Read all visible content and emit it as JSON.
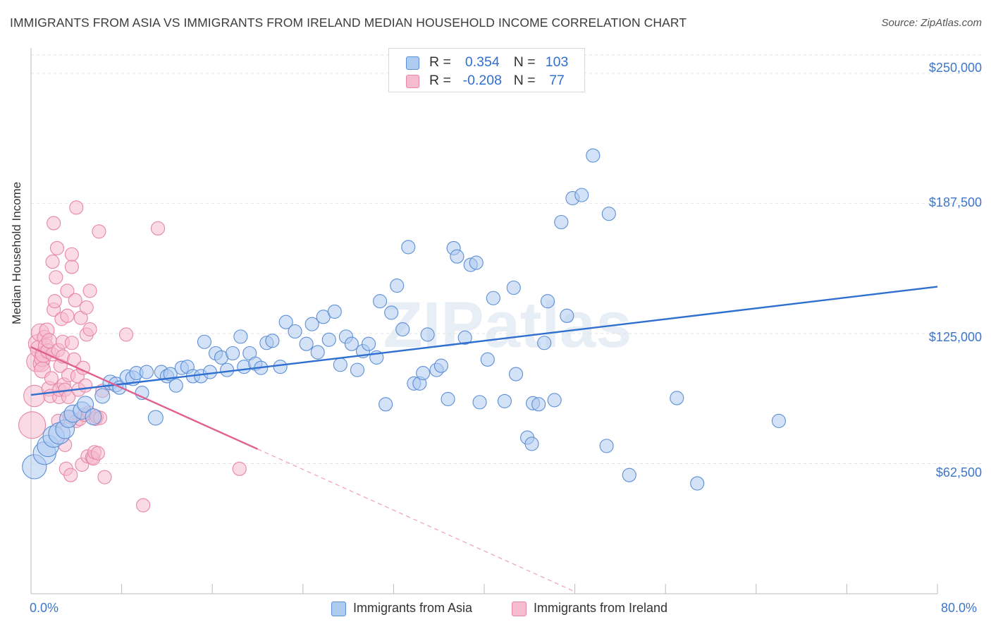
{
  "title": "IMMIGRANTS FROM ASIA VS IMMIGRANTS FROM IRELAND MEDIAN HOUSEHOLD INCOME CORRELATION CHART",
  "source": "Source: ZipAtlas.com",
  "watermark": "ZIPatlas",
  "legend": {
    "asia": {
      "r_label": "R =",
      "r_value": "0.354",
      "n_label": "N =",
      "n_value": "103"
    },
    "ireland": {
      "r_label": "R =",
      "r_value": "-0.208",
      "n_label": "N =",
      "n_value": "77"
    }
  },
  "bottom_legend": {
    "asia": "Immigrants from Asia",
    "ireland": "Immigrants from Ireland"
  },
  "colors": {
    "asia_fill": "#aecbf0",
    "asia_stroke": "#5b8fd6",
    "asia_line": "#2f6fd0",
    "ireland_fill": "#f5bcd0",
    "ireland_stroke": "#e886a6",
    "ireland_line": "#e0608e",
    "grid": "#e3e3e3",
    "tick_label": "#3d76c8"
  },
  "chart_data": {
    "type": "scatter",
    "title": "IMMIGRANTS FROM ASIA VS IMMIGRANTS FROM IRELAND MEDIAN HOUSEHOLD INCOME CORRELATION CHART",
    "xlabel": "",
    "ylabel": "Median Household Income",
    "xlim": [
      0,
      80
    ],
    "ylim": [
      0,
      262500
    ],
    "x_tick_labels": [
      "0.0%",
      "80.0%"
    ],
    "y_ticks": [
      62500,
      125000,
      187500,
      250000
    ],
    "y_tick_labels": [
      "$62,500",
      "$125,000",
      "$187,500",
      "$250,000"
    ],
    "series": [
      {
        "name": "Immigrants from Asia",
        "trend": {
          "x": [
            0,
            80
          ],
          "y": [
            95500,
            147500
          ]
        },
        "points": [
          [
            0.3,
            61000,
            1.8
          ],
          [
            1.2,
            67500,
            1.7
          ],
          [
            1.5,
            71000,
            1.6
          ],
          [
            2,
            75500,
            1.6
          ],
          [
            2.5,
            77000,
            1.6
          ],
          [
            3,
            79000,
            1.4
          ],
          [
            3.3,
            84000,
            1.3
          ],
          [
            3.7,
            86500,
            1.3
          ],
          [
            4.5,
            88000,
            1.3
          ],
          [
            4.8,
            91000,
            1.2
          ],
          [
            5.5,
            85000,
            1.2
          ],
          [
            6.3,
            95000,
            1.1
          ],
          [
            7,
            101500,
            1.1
          ],
          [
            7.5,
            100500,
            1.1
          ],
          [
            7.8,
            99000,
            1.0
          ],
          [
            8.5,
            104000,
            1.1
          ],
          [
            9,
            103500,
            1.1
          ],
          [
            9.3,
            106000,
            1.0
          ],
          [
            9.8,
            96500,
            1.0
          ],
          [
            10.2,
            106500,
            1.0
          ],
          [
            11,
            84500,
            1.1
          ],
          [
            11.5,
            106500,
            1.0
          ],
          [
            12,
            104500,
            1.0
          ],
          [
            12.3,
            105500,
            1.0
          ],
          [
            12.8,
            100000,
            1.0
          ],
          [
            13.3,
            108500,
            1.0
          ],
          [
            13.8,
            109000,
            1.0
          ],
          [
            14.3,
            104500,
            1.0
          ],
          [
            15,
            104500,
            1.0
          ],
          [
            15.3,
            121000,
            1.0
          ],
          [
            15.8,
            106500,
            1.0
          ],
          [
            16.3,
            115500,
            1.0
          ],
          [
            16.8,
            113500,
            1.0
          ],
          [
            17.3,
            107500,
            1.0
          ],
          [
            17.8,
            115500,
            1.0
          ],
          [
            18.5,
            123500,
            1.0
          ],
          [
            18.8,
            109000,
            1.0
          ],
          [
            19.3,
            115500,
            1.0
          ],
          [
            19.8,
            110500,
            1.0
          ],
          [
            20.3,
            108500,
            1.0
          ],
          [
            20.8,
            120500,
            1.0
          ],
          [
            21.3,
            121500,
            1.0
          ],
          [
            22,
            109000,
            1.0
          ],
          [
            22.5,
            130500,
            1.0
          ],
          [
            23.3,
            126000,
            1.0
          ],
          [
            24.3,
            120000,
            1.0
          ],
          [
            24.8,
            129500,
            1.0
          ],
          [
            25.3,
            116000,
            1.0
          ],
          [
            25.8,
            133000,
            1.0
          ],
          [
            26.3,
            122000,
            1.0
          ],
          [
            26.8,
            135500,
            1.0
          ],
          [
            27.3,
            110000,
            1.0
          ],
          [
            27.8,
            123500,
            1.0
          ],
          [
            28.3,
            120000,
            1.0
          ],
          [
            28.8,
            107500,
            1.0
          ],
          [
            29.3,
            116500,
            1.0
          ],
          [
            29.8,
            120000,
            1.0
          ],
          [
            30.5,
            113500,
            1.0
          ],
          [
            30.8,
            140500,
            1.0
          ],
          [
            31.3,
            91000,
            1.0
          ],
          [
            31.8,
            135000,
            1.0
          ],
          [
            32.3,
            148000,
            1.0
          ],
          [
            32.8,
            127000,
            1.0
          ],
          [
            33.3,
            166500,
            1.0
          ],
          [
            33.8,
            101000,
            1.0
          ],
          [
            34.3,
            101000,
            1.0
          ],
          [
            34.6,
            106000,
            1.0
          ],
          [
            35,
            124500,
            1.0
          ],
          [
            35.8,
            107500,
            1.0
          ],
          [
            36.2,
            109500,
            1.0
          ],
          [
            36.8,
            93500,
            1.0
          ],
          [
            37.3,
            166000,
            1.0
          ],
          [
            37.6,
            162000,
            1.0
          ],
          [
            38.3,
            123000,
            1.0
          ],
          [
            38.8,
            158000,
            1.0
          ],
          [
            39.3,
            159000,
            1.0
          ],
          [
            39.6,
            92000,
            1.0
          ],
          [
            40.3,
            112500,
            1.0
          ],
          [
            40.8,
            142000,
            1.0
          ],
          [
            41.8,
            92500,
            1.0
          ],
          [
            42.6,
            147000,
            1.0
          ],
          [
            42.8,
            105500,
            1.0
          ],
          [
            43.8,
            75000,
            1.0
          ],
          [
            44.2,
            72000,
            1.0
          ],
          [
            44.3,
            91500,
            1.0
          ],
          [
            44.8,
            91000,
            1.0
          ],
          [
            45.3,
            120500,
            1.0
          ],
          [
            45.6,
            140500,
            1.0
          ],
          [
            46.2,
            93000,
            1.0
          ],
          [
            46.8,
            178500,
            1.0
          ],
          [
            47.3,
            133500,
            1.0
          ],
          [
            47.8,
            190000,
            1.0
          ],
          [
            48.6,
            191500,
            1.0
          ],
          [
            49.6,
            210500,
            1.0
          ],
          [
            50.8,
            71000,
            1.0
          ],
          [
            51,
            182500,
            1.0
          ],
          [
            52.8,
            57000,
            1.0
          ],
          [
            57,
            94000,
            1.0
          ],
          [
            58.8,
            53000,
            1.0
          ],
          [
            66,
            83000,
            1.0
          ]
        ]
      },
      {
        "name": "Immigrants from Ireland",
        "trend_solid": {
          "x": [
            0,
            20
          ],
          "y": [
            118500,
            69500
          ]
        },
        "trend_dashed": {
          "x": [
            20,
            48
          ],
          "y": [
            69500,
            1000
          ]
        },
        "points": [
          [
            0.1,
            81000,
            2.0
          ],
          [
            0.3,
            95000,
            1.6
          ],
          [
            0.5,
            111500,
            1.5
          ],
          [
            0.6,
            120000,
            1.4
          ],
          [
            0.7,
            117500,
            1.3
          ],
          [
            0.8,
            125500,
            1.3
          ],
          [
            0.9,
            110500,
            1.2
          ],
          [
            1,
            113000,
            1.2
          ],
          [
            1,
            107500,
            1.2
          ],
          [
            1.1,
            115000,
            1.2
          ],
          [
            1.2,
            123000,
            1.1
          ],
          [
            1.3,
            119000,
            1.1
          ],
          [
            1.4,
            126500,
            1.1
          ],
          [
            1.5,
            116500,
            1.1
          ],
          [
            1.6,
            121500,
            1.1
          ],
          [
            1.6,
            98500,
            1.1
          ],
          [
            1.7,
            95000,
            1.0
          ],
          [
            1.8,
            103500,
            1.0
          ],
          [
            1.9,
            115000,
            1.0
          ],
          [
            1.9,
            159500,
            1.0
          ],
          [
            2,
            178000,
            1.0
          ],
          [
            2,
            136500,
            1.0
          ],
          [
            2.1,
            140500,
            1.0
          ],
          [
            2.2,
            152000,
            1.0
          ],
          [
            2.3,
            166000,
            1.0
          ],
          [
            2.4,
            117000,
            1.0
          ],
          [
            2.4,
            83000,
            1.0
          ],
          [
            2.5,
            94500,
            1.0
          ],
          [
            2.5,
            98000,
            1.0
          ],
          [
            2.6,
            109500,
            1.0
          ],
          [
            2.7,
            132000,
            1.0
          ],
          [
            2.8,
            121000,
            1.0
          ],
          [
            2.8,
            114000,
            1.0
          ],
          [
            2.9,
            100500,
            1.0
          ],
          [
            3,
            98000,
            1.0
          ],
          [
            3,
            71500,
            1.0
          ],
          [
            3.1,
            60000,
            1.0
          ],
          [
            3.2,
            145500,
            1.0
          ],
          [
            3.2,
            133500,
            1.0
          ],
          [
            3.3,
            105000,
            1.0
          ],
          [
            3.3,
            94500,
            1.0
          ],
          [
            3.4,
            85000,
            1.0
          ],
          [
            3.5,
            57000,
            1.0
          ],
          [
            3.6,
            120500,
            1.0
          ],
          [
            3.6,
            157000,
            1.0
          ],
          [
            3.6,
            163000,
            1.0
          ],
          [
            3.8,
            112500,
            1.0
          ],
          [
            3.9,
            141000,
            1.0
          ],
          [
            4,
            185500,
            1.0
          ],
          [
            4,
            83000,
            1.0
          ],
          [
            4.1,
            104500,
            1.0
          ],
          [
            4.2,
            98000,
            1.0
          ],
          [
            4.3,
            84000,
            1.0
          ],
          [
            4.4,
            132500,
            1.0
          ],
          [
            4.5,
            62000,
            1.0
          ],
          [
            4.6,
            108500,
            1.0
          ],
          [
            4.7,
            86000,
            1.0
          ],
          [
            4.8,
            100000,
            1.0
          ],
          [
            4.9,
            137500,
            1.0
          ],
          [
            4.9,
            124500,
            1.0
          ],
          [
            5,
            66000,
            1.0
          ],
          [
            5.1,
            87000,
            1.0
          ],
          [
            5.2,
            127000,
            1.0
          ],
          [
            5.2,
            145500,
            1.0
          ],
          [
            5.4,
            65500,
            1.0
          ],
          [
            5.5,
            65000,
            1.0
          ],
          [
            5.6,
            68000,
            1.0
          ],
          [
            5.7,
            84000,
            1.0
          ],
          [
            5.8,
            85000,
            1.0
          ],
          [
            5.9,
            67500,
            1.0
          ],
          [
            6,
            174000,
            1.0
          ],
          [
            6.1,
            84500,
            1.0
          ],
          [
            6.3,
            97500,
            1.0
          ],
          [
            6.5,
            56000,
            1.0
          ],
          [
            8.4,
            124500,
            1.0
          ],
          [
            9.9,
            42500,
            1.0
          ],
          [
            11.2,
            175500,
            1.0
          ],
          [
            18.4,
            60000,
            1.0
          ]
        ]
      }
    ]
  }
}
